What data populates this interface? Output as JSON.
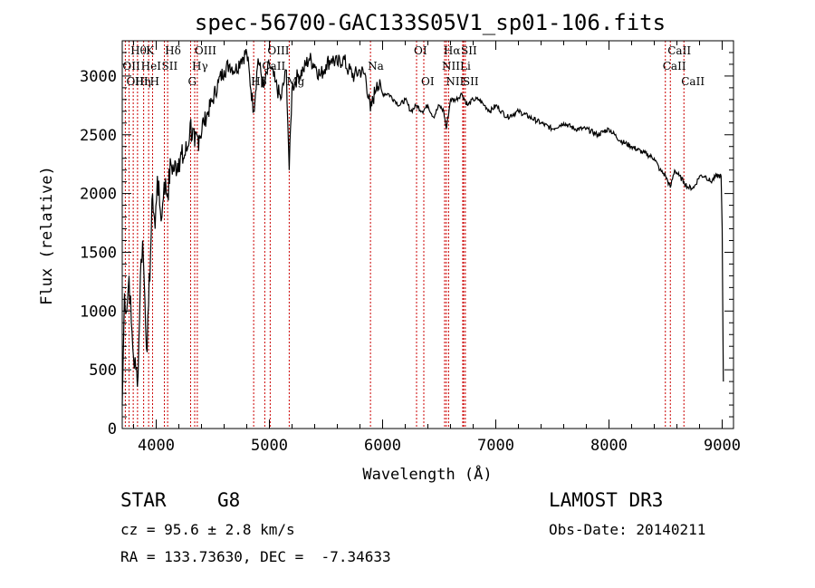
{
  "chart_data": {
    "type": "line",
    "title": "spec-56700-GAC133S05V1_sp01-106.fits",
    "xlabel": "Wavelength (Å)",
    "ylabel": "Flux (relative)",
    "xlim": [
      3700,
      9100
    ],
    "ylim": [
      0,
      3300
    ],
    "xticks": [
      4000,
      5000,
      6000,
      7000,
      8000,
      9000
    ],
    "xtick_labels": [
      "4000",
      "5000",
      "6000",
      "7000",
      "8000",
      "9000"
    ],
    "yticks": [
      0,
      500,
      1000,
      1500,
      2000,
      2500,
      3000
    ],
    "ytick_labels": [
      "0",
      "500",
      "1000",
      "1500",
      "2000",
      "2500",
      "3000"
    ],
    "series": [
      {
        "name": "spectrum",
        "x": [
          3700,
          3720,
          3740,
          3760,
          3780,
          3800,
          3820,
          3840,
          3860,
          3880,
          3900,
          3920,
          3933,
          3950,
          3968,
          3990,
          4010,
          4030,
          4050,
          4070,
          4101,
          4130,
          4160,
          4200,
          4240,
          4280,
          4300,
          4340,
          4380,
          4420,
          4460,
          4500,
          4550,
          4600,
          4650,
          4700,
          4750,
          4800,
          4861,
          4900,
          4950,
          5000,
          5050,
          5100,
          5150,
          5175,
          5200,
          5250,
          5300,
          5350,
          5400,
          5450,
          5500,
          5550,
          5600,
          5650,
          5700,
          5750,
          5800,
          5850,
          5893,
          5950,
          6000,
          6050,
          6100,
          6150,
          6200,
          6250,
          6300,
          6350,
          6400,
          6450,
          6500,
          6540,
          6563,
          6600,
          6650,
          6700,
          6750,
          6800,
          6850,
          6900,
          6950,
          7000,
          7050,
          7100,
          7200,
          7300,
          7400,
          7500,
          7600,
          7700,
          7800,
          7900,
          8000,
          8100,
          8200,
          8300,
          8400,
          8450,
          8500,
          8542,
          8580,
          8620,
          8662,
          8700,
          8750,
          8800,
          8850,
          8900,
          8950,
          8990,
          9000,
          9010
        ],
        "y": [
          200,
          1150,
          1000,
          1300,
          900,
          600,
          500,
          450,
          1300,
          1600,
          1100,
          650,
          1050,
          1500,
          2000,
          1700,
          2150,
          1900,
          1800,
          2100,
          2000,
          2250,
          2200,
          2300,
          2300,
          2400,
          2600,
          2400,
          2500,
          2600,
          2700,
          2800,
          2950,
          3050,
          3100,
          3050,
          3150,
          3200,
          2700,
          3150,
          2900,
          3100,
          2950,
          2800,
          3050,
          2200,
          2900,
          3000,
          3050,
          3150,
          3100,
          3000,
          3100,
          3150,
          3100,
          3150,
          3050,
          3000,
          3050,
          3000,
          2700,
          2950,
          2850,
          2850,
          2800,
          2750,
          2800,
          2700,
          2750,
          2700,
          2750,
          2650,
          2750,
          2700,
          2550,
          2800,
          2800,
          2850,
          2750,
          2800,
          2800,
          2750,
          2700,
          2750,
          2700,
          2650,
          2700,
          2650,
          2600,
          2550,
          2600,
          2550,
          2550,
          2500,
          2550,
          2450,
          2400,
          2350,
          2300,
          2200,
          2150,
          2050,
          2200,
          2150,
          2100,
          2050,
          2050,
          2150,
          2150,
          2100,
          2150,
          2150,
          1700,
          400
        ]
      }
    ],
    "spectral_lines": [
      {
        "name": "Hθ",
        "wavelength": 3797,
        "row": 0
      },
      {
        "name": "K",
        "wavelength": 3933,
        "row": 0
      },
      {
        "name": "Hδ",
        "wavelength": 4101,
        "row": 0
      },
      {
        "name": "OIII",
        "wavelength": 4363,
        "row": 0
      },
      {
        "name": "OIII",
        "wavelength": 5007,
        "row": 0
      },
      {
        "name": "OI",
        "wavelength": 6300,
        "row": 0
      },
      {
        "name": "Hα",
        "wavelength": 6563,
        "row": 0
      },
      {
        "name": "SII",
        "wavelength": 6716,
        "row": 0
      },
      {
        "name": "CaII",
        "wavelength": 8542,
        "row": 0
      },
      {
        "name": "OII",
        "wavelength": 3727,
        "row": 1
      },
      {
        "name": "HeI",
        "wavelength": 3889,
        "row": 1
      },
      {
        "name": "SII",
        "wavelength": 4072,
        "row": 1
      },
      {
        "name": "Hγ",
        "wavelength": 4340,
        "row": 1
      },
      {
        "name": "CaII",
        "wavelength": 4959,
        "row": 1
      },
      {
        "name": "Na",
        "wavelength": 5893,
        "row": 1
      },
      {
        "name": "NII",
        "wavelength": 6548,
        "row": 1
      },
      {
        "name": "Li",
        "wavelength": 6708,
        "row": 1
      },
      {
        "name": "CaII",
        "wavelength": 8498,
        "row": 1
      },
      {
        "name": "OIII",
        "wavelength": 3760,
        "row": 2
      },
      {
        "name": "Hη",
        "wavelength": 3835,
        "row": 2
      },
      {
        "name": "H",
        "wavelength": 3968,
        "row": 2
      },
      {
        "name": "G",
        "wavelength": 4304,
        "row": 2
      },
      {
        "name": "Hβ",
        "wavelength": 4861,
        "row": 2
      },
      {
        "name": "Mg",
        "wavelength": 5175,
        "row": 2
      },
      {
        "name": "OI",
        "wavelength": 6364,
        "row": 2
      },
      {
        "name": "NII",
        "wavelength": 6583,
        "row": 2
      },
      {
        "name": "SII",
        "wavelength": 6731,
        "row": 2
      },
      {
        "name": "CaII",
        "wavelength": 8662,
        "row": 2
      }
    ]
  },
  "info": {
    "class": "STAR",
    "subclass": "G8",
    "survey": "LAMOST DR3",
    "cz": "cz = 95.6 ± 2.8 km/s",
    "obs_date": "Obs-Date: 20140211",
    "coords": "RA = 133.73630, DEC =  -7.34633"
  },
  "colors": {
    "line_marker": "#cc0000",
    "spectrum": "#000000"
  }
}
